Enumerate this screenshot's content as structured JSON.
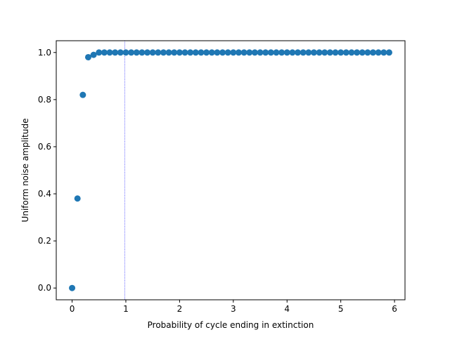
{
  "chart_data": {
    "type": "scatter",
    "xlabel": "Probability of cycle ending in extinction",
    "ylabel": "Uniform noise amplitude",
    "xlim": [
      -0.295,
      6.195
    ],
    "ylim": [
      -0.05,
      1.05
    ],
    "xticks": [
      0,
      1,
      2,
      3,
      4,
      5,
      6
    ],
    "xtick_labels": [
      "0",
      "1",
      "2",
      "3",
      "4",
      "5",
      "6"
    ],
    "yticks": [
      0.0,
      0.2,
      0.4,
      0.6,
      0.8,
      1.0
    ],
    "ytick_labels": [
      "0.0",
      "0.2",
      "0.4",
      "0.6",
      "0.8",
      "1.0"
    ],
    "grid": false,
    "reference_line": {
      "orientation": "vertical",
      "x": 0.98,
      "style": "dotted",
      "color": "#0000ff"
    },
    "series": [
      {
        "color": "#1f77b4",
        "x": [
          0.0,
          0.1,
          0.2,
          0.3,
          0.4,
          0.5,
          0.6,
          0.7,
          0.8,
          0.9,
          1.0,
          1.1,
          1.2,
          1.3,
          1.4,
          1.5,
          1.6,
          1.7,
          1.8,
          1.9,
          2.0,
          2.1,
          2.2,
          2.3,
          2.4,
          2.5,
          2.6,
          2.7,
          2.8,
          2.9,
          3.0,
          3.1,
          3.2,
          3.3,
          3.4,
          3.5,
          3.6,
          3.7,
          3.8,
          3.9,
          4.0,
          4.1,
          4.2,
          4.3,
          4.4,
          4.5,
          4.6,
          4.7,
          4.8,
          4.9,
          5.0,
          5.1,
          5.2,
          5.3,
          5.4,
          5.5,
          5.6,
          5.7,
          5.8,
          5.9
        ],
        "y": [
          0.0,
          0.38,
          0.82,
          0.98,
          0.99,
          1.0,
          1.0,
          1.0,
          1.0,
          1.0,
          1.0,
          1.0,
          1.0,
          1.0,
          1.0,
          1.0,
          1.0,
          1.0,
          1.0,
          1.0,
          1.0,
          1.0,
          1.0,
          1.0,
          1.0,
          1.0,
          1.0,
          1.0,
          1.0,
          1.0,
          1.0,
          1.0,
          1.0,
          1.0,
          1.0,
          1.0,
          1.0,
          1.0,
          1.0,
          1.0,
          1.0,
          1.0,
          1.0,
          1.0,
          1.0,
          1.0,
          1.0,
          1.0,
          1.0,
          1.0,
          1.0,
          1.0,
          1.0,
          1.0,
          1.0,
          1.0,
          1.0,
          1.0,
          1.0,
          1.0
        ]
      }
    ]
  }
}
